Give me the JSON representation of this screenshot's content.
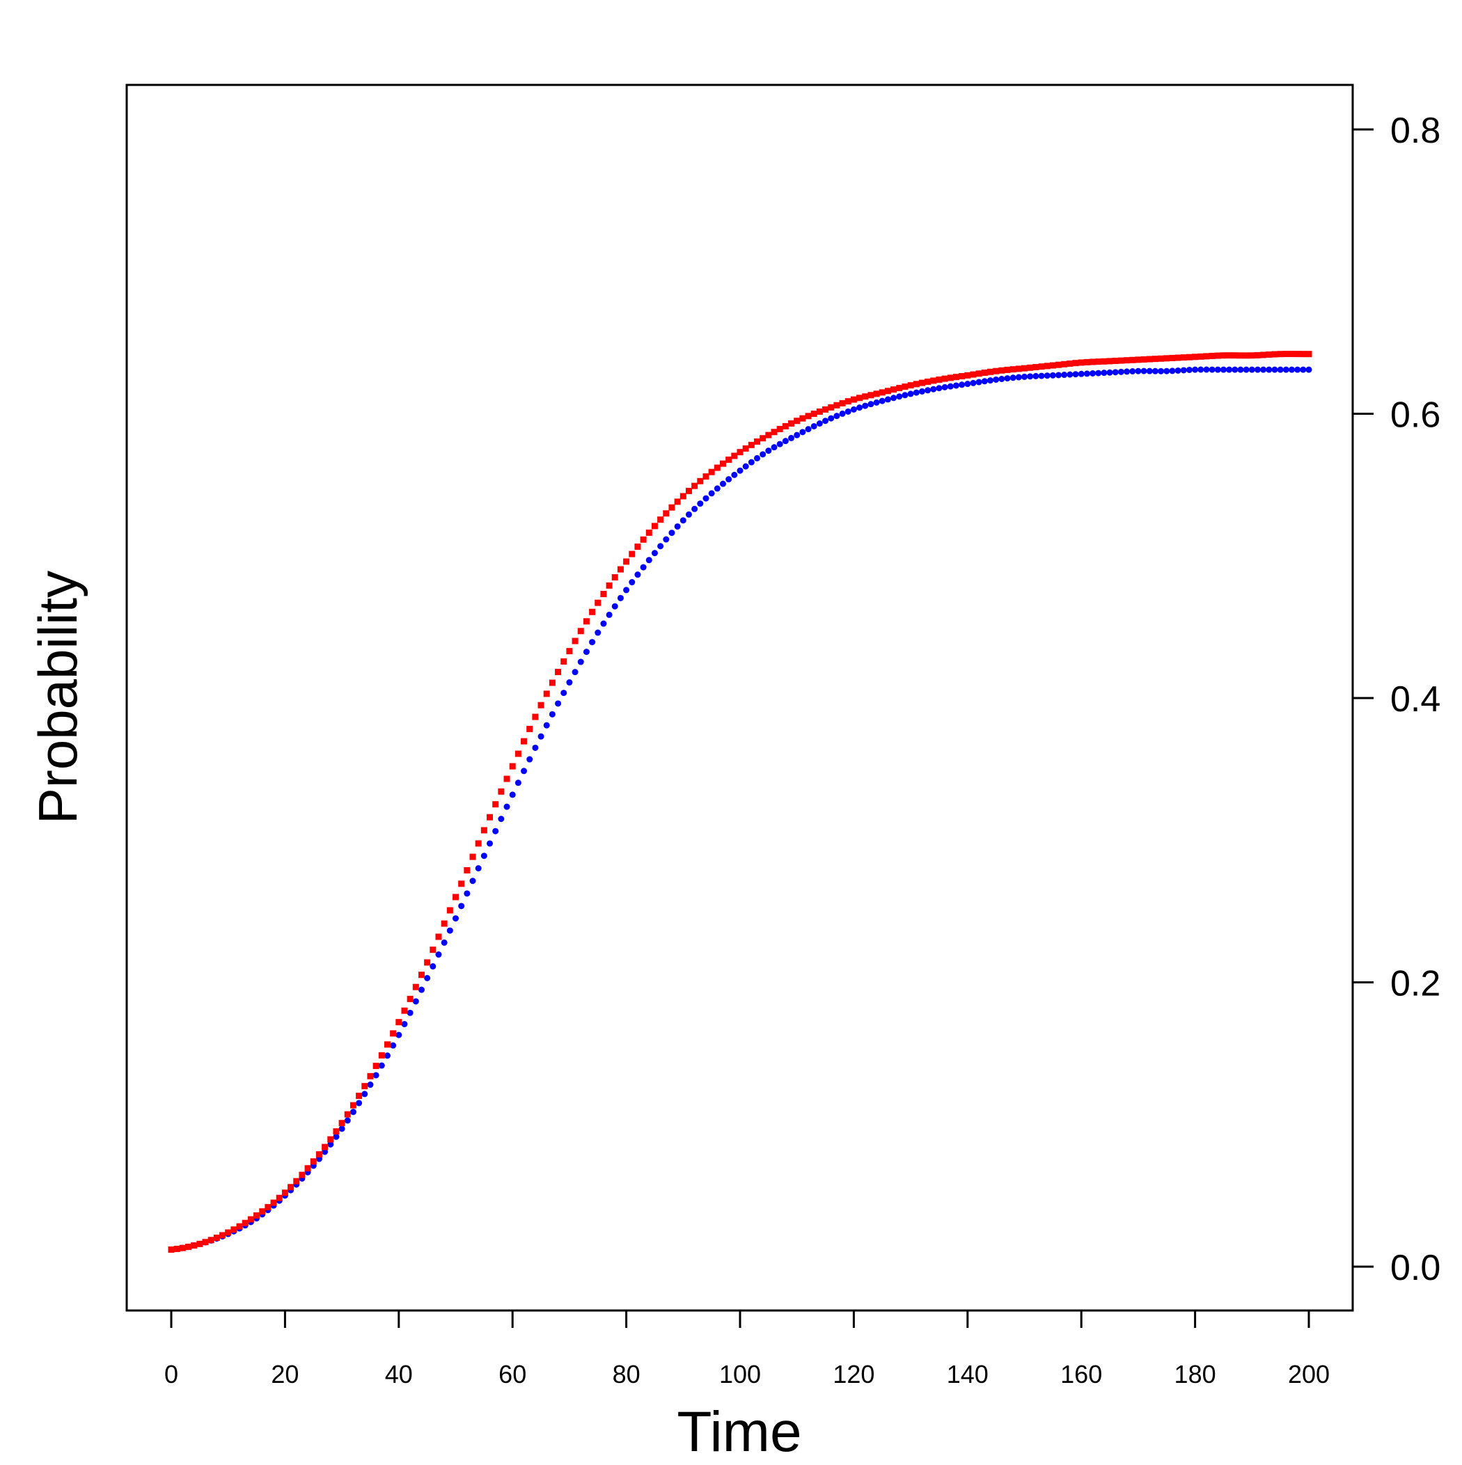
{
  "chart_data": {
    "type": "scatter",
    "title": "",
    "xlabel": "Time",
    "ylabel": "Probability",
    "xlim": [
      0,
      200
    ],
    "ylim": [
      0,
      0.8
    ],
    "x_ticks": [
      "0",
      "20",
      "40",
      "60",
      "80",
      "100",
      "120",
      "140",
      "160",
      "180",
      "200"
    ],
    "y_ticks": [
      "0.0",
      "0.2",
      "0.4",
      "0.6",
      "0.8"
    ],
    "y_axis_side": "right",
    "grid": false,
    "legend": "none",
    "x": [
      0,
      5,
      10,
      15,
      20,
      25,
      30,
      35,
      40,
      45,
      50,
      55,
      60,
      65,
      70,
      75,
      80,
      85,
      90,
      95,
      100,
      105,
      110,
      115,
      120,
      125,
      130,
      135,
      140,
      145,
      150,
      155,
      160,
      165,
      170,
      175,
      180,
      185,
      190,
      195,
      200
    ],
    "series": [
      {
        "name": "red squares",
        "color": "#ff0000",
        "marker": "square",
        "values": [
          0.012,
          0.016,
          0.024,
          0.036,
          0.052,
          0.074,
          0.101,
          0.134,
          0.172,
          0.214,
          0.26,
          0.307,
          0.352,
          0.395,
          0.433,
          0.467,
          0.496,
          0.521,
          0.542,
          0.559,
          0.573,
          0.585,
          0.595,
          0.603,
          0.61,
          0.615,
          0.62,
          0.624,
          0.627,
          0.63,
          0.632,
          0.634,
          0.636,
          0.637,
          0.638,
          0.639,
          0.64,
          0.641,
          0.641,
          0.642,
          0.642
        ]
      },
      {
        "name": "blue circles",
        "color": "#0000ff",
        "marker": "circle",
        "values": [
          0.012,
          0.016,
          0.023,
          0.034,
          0.05,
          0.071,
          0.097,
          0.128,
          0.163,
          0.203,
          0.245,
          0.289,
          0.332,
          0.373,
          0.411,
          0.446,
          0.476,
          0.502,
          0.525,
          0.544,
          0.56,
          0.574,
          0.585,
          0.595,
          0.603,
          0.609,
          0.614,
          0.618,
          0.621,
          0.624,
          0.626,
          0.627,
          0.628,
          0.629,
          0.63,
          0.63,
          0.631,
          0.631,
          0.631,
          0.631,
          0.631
        ]
      }
    ]
  }
}
